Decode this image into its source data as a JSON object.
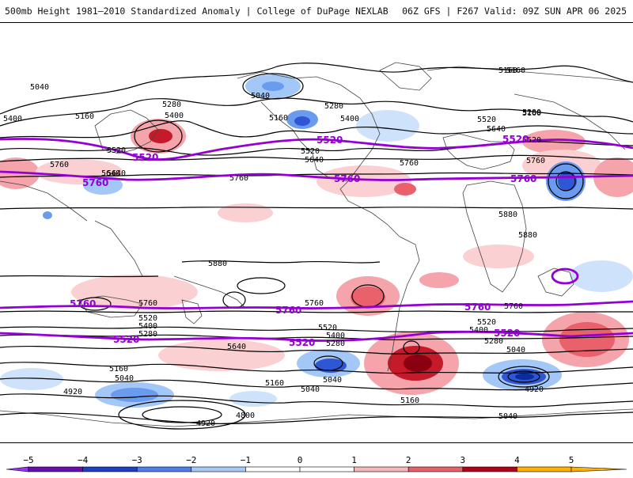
{
  "header": {
    "left": "500mb Height 1981–2010 Standardized Anomaly | College of DuPage NEXLAB",
    "right": "06Z GFS | F267 Valid: 09Z SUN APR 06 2025"
  },
  "colors": {
    "positive": [
      "#fbd0d3",
      "#f4a4aa",
      "#e8616b",
      "#c41a2a",
      "#8b0010"
    ],
    "negative": [
      "#cfe2fb",
      "#a3c7f7",
      "#6b9bef",
      "#2f57d4",
      "#0b2c9c"
    ],
    "contour": "#000000",
    "highlight_contour": "#9400d3",
    "coastline": "#444444"
  },
  "colorbar": {
    "ticks": [
      "−5",
      "−4",
      "−3",
      "−2",
      "−1",
      "0",
      "1",
      "2",
      "3",
      "4",
      "5"
    ],
    "colors": [
      "#9b30ff",
      "#6a0dad",
      "#1e3fbf",
      "#4f7ee8",
      "#a9c8f5",
      "#ffffff",
      "#ffffff",
      "#f6b7bb",
      "#e5626b",
      "#b0001b",
      "#ffb000"
    ]
  },
  "contour_labels": {
    "black": [
      "5040",
      "5160",
      "5400",
      "5280",
      "5160",
      "5040",
      "5280",
      "5160",
      "5160",
      "5400",
      "5520",
      "5640",
      "5520",
      "5400",
      "5280",
      "5160",
      "5520",
      "5760",
      "5640",
      "5640",
      "5760",
      "5760",
      "5520",
      "5640",
      "5760",
      "5880",
      "5880",
      "5880",
      "5760",
      "5760",
      "5760",
      "5520",
      "5400",
      "5280",
      "5160",
      "5040",
      "4920",
      "4920",
      "4800",
      "5640",
      "5520",
      "5400",
      "5280",
      "5160",
      "5040",
      "5040",
      "5160",
      "5520",
      "5400",
      "5280",
      "5040",
      "4920",
      "5040"
    ],
    "purple": [
      "5520",
      "5520",
      "5760",
      "5520",
      "5520",
      "5760",
      "5760",
      "5760",
      "5760",
      "5520",
      "5520",
      "5760"
    ]
  }
}
